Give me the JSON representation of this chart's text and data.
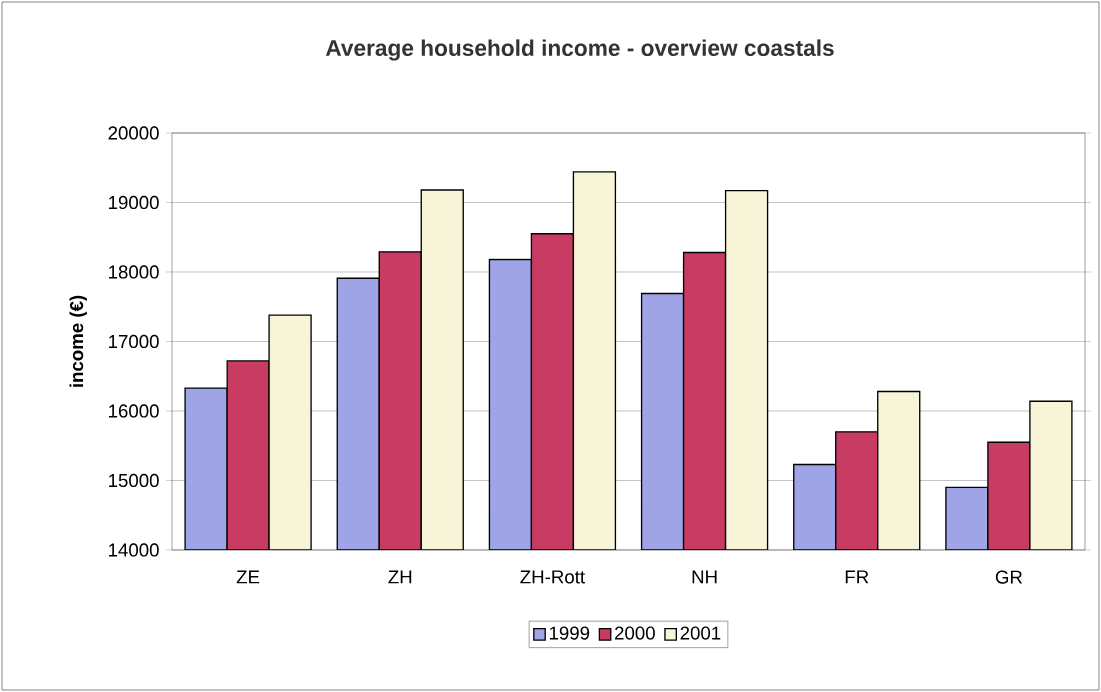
{
  "chart_data": {
    "type": "bar",
    "title": "Average household income - overview coastals",
    "ylabel": "income (€)",
    "categories": [
      "ZE",
      "ZH",
      "ZH-Rott",
      "NH",
      "FR",
      "GR"
    ],
    "series": [
      {
        "name": "1999",
        "color": "#9ea4e6",
        "values": [
          16330,
          17910,
          18180,
          17690,
          15230,
          14900
        ]
      },
      {
        "name": "2000",
        "color": "#c83c64",
        "values": [
          16720,
          18290,
          18550,
          18280,
          15700,
          15550
        ]
      },
      {
        "name": "2001",
        "color": "#f8f4d8",
        "values": [
          17380,
          19180,
          19440,
          19170,
          16280,
          16140
        ]
      }
    ],
    "ylim": [
      14000,
      20000
    ],
    "yticks": [
      14000,
      15000,
      16000,
      17000,
      18000,
      19000,
      20000
    ],
    "grid": "y",
    "legend": "bottom"
  }
}
